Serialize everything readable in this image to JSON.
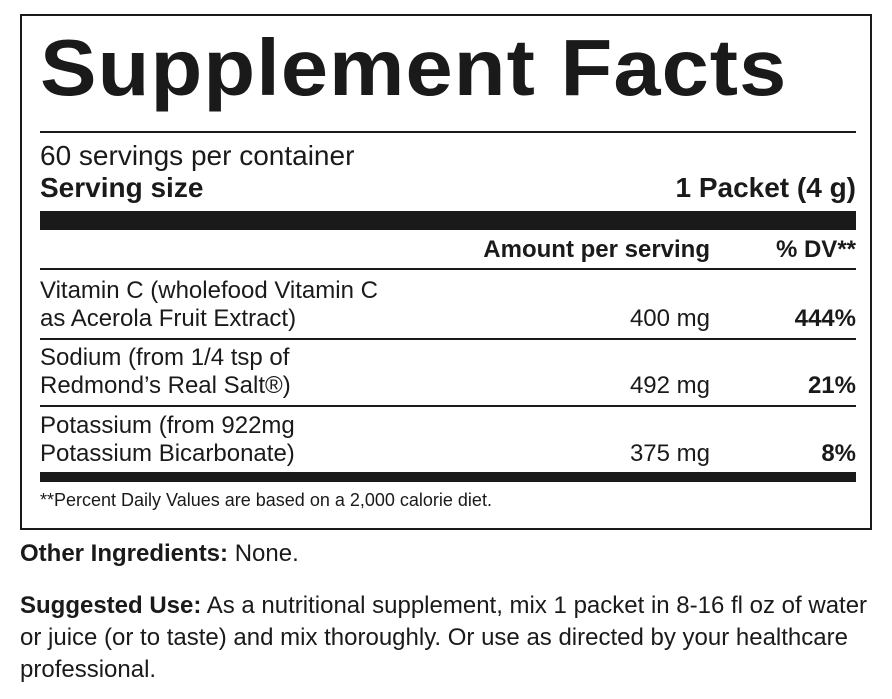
{
  "title": "Supplement Facts",
  "servings_per_container": "60 servings per container",
  "serving_size_label": "Serving size",
  "serving_size_value": "1 Packet (4 g)",
  "header": {
    "amount": "Amount per serving",
    "dv": "% DV**"
  },
  "rows": [
    {
      "name_line1": "Vitamin C (wholefood Vitamin C",
      "name_line2": "as Acerola Fruit Extract)",
      "amount": "400 mg",
      "dv": "444%"
    },
    {
      "name_line1": "Sodium (from 1/4 tsp of",
      "name_line2": "Redmond’s Real Salt®)",
      "amount": "492 mg",
      "dv": "21%"
    },
    {
      "name_line1": "Potassium (from 922mg",
      "name_line2": "Potassium Bicarbonate)",
      "amount": "375 mg",
      "dv": "8%"
    }
  ],
  "footnote": "**Percent Daily Values are based on a 2,000 calorie diet.",
  "other_ingredients": {
    "label": "Other Ingredients:",
    "text": " None."
  },
  "suggested_use": {
    "label": "Suggested Use:",
    "text": " As a nutritional supplement, mix 1 packet in 8-16 fl oz of water or juice (or to taste) and mix thoroughly. Or use as directed by your healthcare professional."
  }
}
